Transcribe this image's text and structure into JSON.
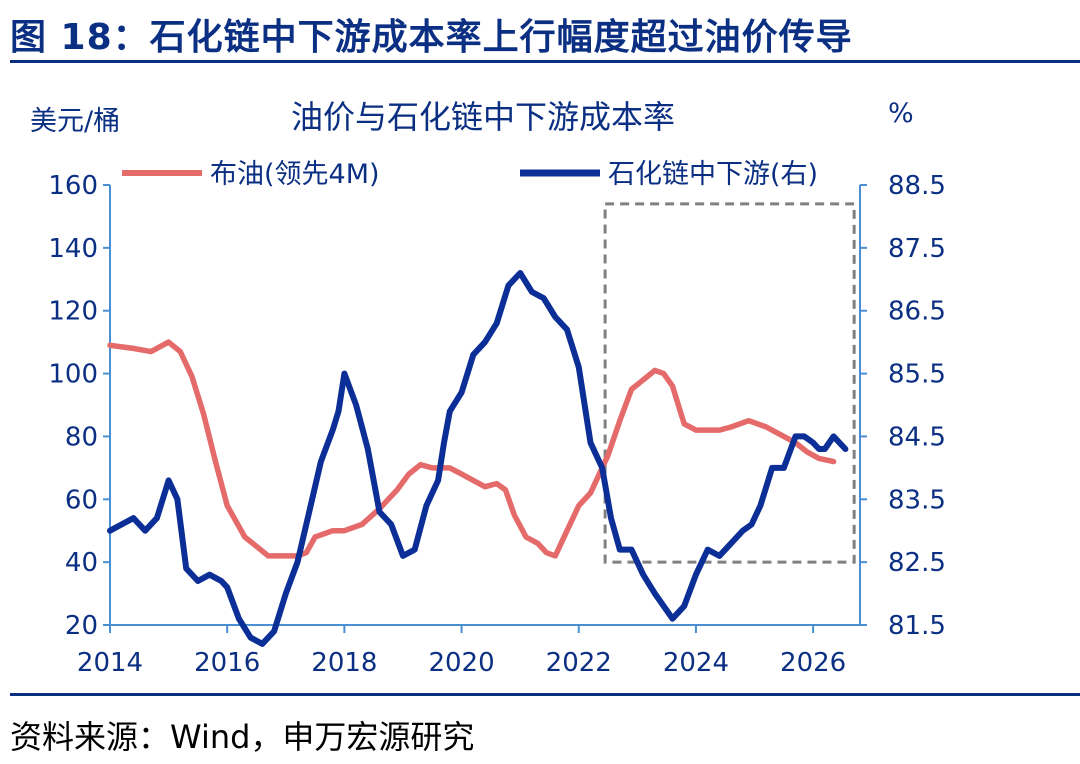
{
  "figure": {
    "title": "图 18：石化链中下游成本率上行幅度超过油价传导",
    "source": "资料来源：Wind，申万宏源研究"
  },
  "colors": {
    "axis": "#4a8fd3",
    "text": "#0b2f82",
    "brent": "#e56b6b",
    "chain": "#0b2f96",
    "box": "#808080"
  },
  "chart_data": {
    "type": "line",
    "title": "油价与石化链中下游成本率",
    "left_unit": "美元/桶",
    "right_unit": "%",
    "xlim": [
      2014,
      2026.8
    ],
    "x_ticks": [
      2014,
      2016,
      2018,
      2020,
      2022,
      2024,
      2026
    ],
    "x_tick_labels": [
      "2014",
      "2016",
      "2018",
      "2020",
      "2022",
      "2024",
      "2026"
    ],
    "ylim_left": [
      20,
      160
    ],
    "y_ticks_left": [
      20,
      40,
      60,
      80,
      100,
      120,
      140,
      160
    ],
    "y_tick_labels_left": [
      "20",
      "40",
      "60",
      "80",
      "100",
      "120",
      "140",
      "160"
    ],
    "ylim_right": [
      81.5,
      88.5
    ],
    "y_ticks_right": [
      81.5,
      82.5,
      83.5,
      84.5,
      85.5,
      86.5,
      87.5,
      88.5
    ],
    "y_tick_labels_right": [
      "81.5",
      "82.5",
      "83.5",
      "84.5",
      "85.5",
      "86.5",
      "87.5",
      "88.5"
    ],
    "highlight_box": {
      "x": [
        2022.45,
        2026.7
      ],
      "y_left": [
        40,
        154
      ]
    },
    "series": [
      {
        "name": "布油(领先4M)",
        "axis": "left",
        "color": "#e56b6b",
        "x": [
          2014.0,
          2014.4,
          2014.7,
          2015.0,
          2015.2,
          2015.4,
          2015.6,
          2015.8,
          2016.0,
          2016.3,
          2016.5,
          2016.7,
          2017.0,
          2017.2,
          2017.35,
          2017.5,
          2017.8,
          2018.0,
          2018.3,
          2018.6,
          2018.9,
          2019.1,
          2019.3,
          2019.5,
          2019.8,
          2020.0,
          2020.2,
          2020.4,
          2020.6,
          2020.75,
          2020.9,
          2021.1,
          2021.3,
          2021.45,
          2021.6,
          2021.8,
          2022.0,
          2022.2,
          2022.5,
          2022.7,
          2022.9,
          2023.1,
          2023.3,
          2023.45,
          2023.6,
          2023.8,
          2024.0,
          2024.2,
          2024.4,
          2024.6,
          2024.9,
          2025.2,
          2025.4,
          2025.7,
          2025.9,
          2026.1,
          2026.35
        ],
        "values": [
          109,
          108,
          107,
          110,
          107,
          99,
          87,
          72,
          58,
          48,
          45,
          42,
          42,
          42,
          43,
          48,
          50,
          50,
          52,
          57,
          63,
          68,
          71,
          70,
          70,
          68,
          66,
          64,
          65,
          63,
          55,
          48,
          46,
          43,
          42,
          50,
          58,
          62,
          74,
          85,
          95,
          98,
          101,
          100,
          96,
          84,
          82,
          82,
          82,
          83,
          85,
          83,
          81,
          78,
          75,
          73,
          72
        ]
      },
      {
        "name": "石化链中下游(右)",
        "axis": "right",
        "color": "#0b2f96",
        "x": [
          2014.0,
          2014.2,
          2014.4,
          2014.6,
          2014.8,
          2015.0,
          2015.15,
          2015.3,
          2015.5,
          2015.7,
          2015.9,
          2016.0,
          2016.2,
          2016.4,
          2016.6,
          2016.8,
          2017.0,
          2017.2,
          2017.4,
          2017.6,
          2017.8,
          2017.9,
          2018.0,
          2018.2,
          2018.4,
          2018.6,
          2018.8,
          2019.0,
          2019.2,
          2019.4,
          2019.6,
          2019.7,
          2019.8,
          2020.0,
          2020.2,
          2020.4,
          2020.6,
          2020.8,
          2021.0,
          2021.2,
          2021.4,
          2021.6,
          2021.8,
          2021.9,
          2022.0,
          2022.2,
          2022.4,
          2022.55,
          2022.7,
          2022.9,
          2023.1,
          2023.3,
          2023.45,
          2023.6,
          2023.8,
          2024.0,
          2024.2,
          2024.4,
          2024.6,
          2024.8,
          2024.95,
          2025.1,
          2025.3,
          2025.5,
          2025.7,
          2025.85,
          2026.0,
          2026.1,
          2026.2,
          2026.35,
          2026.55
        ],
        "values": [
          83.0,
          83.1,
          83.2,
          83.0,
          83.2,
          83.8,
          83.5,
          82.4,
          82.2,
          82.3,
          82.2,
          82.1,
          81.6,
          81.3,
          81.2,
          81.4,
          82.0,
          82.5,
          83.3,
          84.1,
          84.6,
          84.9,
          85.5,
          85.0,
          84.3,
          83.3,
          83.1,
          82.6,
          82.7,
          83.4,
          83.8,
          84.4,
          84.9,
          85.2,
          85.8,
          86.0,
          86.3,
          86.9,
          87.1,
          86.8,
          86.7,
          86.4,
          86.2,
          85.9,
          85.6,
          84.4,
          84.0,
          83.2,
          82.7,
          82.7,
          82.3,
          82.0,
          81.8,
          81.6,
          81.8,
          82.3,
          82.7,
          82.6,
          82.8,
          83.0,
          83.1,
          83.4,
          84.0,
          84.0,
          84.5,
          84.5,
          84.4,
          84.3,
          84.3,
          84.5,
          84.3
        ]
      }
    ]
  }
}
